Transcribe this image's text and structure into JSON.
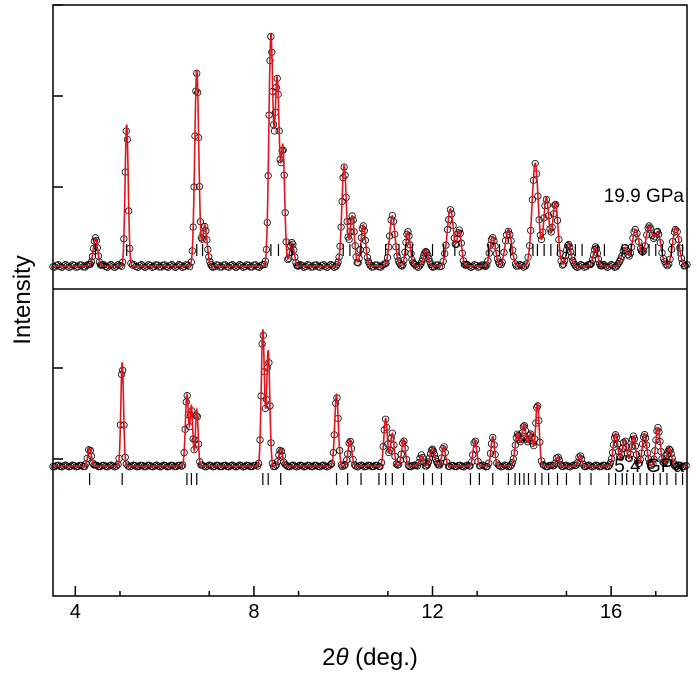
{
  "chart_data": {
    "type": "scatter",
    "x_label_prefix": "2",
    "x_label_symbol": "θ",
    "x_label_suffix": " (deg.)",
    "ylabel": "Intensity",
    "xlim": [
      3.5,
      17.7
    ],
    "x_ticks": [
      4,
      8,
      12,
      16
    ],
    "x_tick_labels": [
      "4",
      "8",
      "12",
      "16"
    ],
    "grid": false,
    "colors": {
      "observed": "#000000",
      "calculated": "#e0141e",
      "bragg": "#000000"
    },
    "panels": [
      {
        "label": "19.9 GPa",
        "peaks": [
          [
            4.45,
            0.12,
            0.05
          ],
          [
            5.15,
            0.62,
            0.035
          ],
          [
            6.72,
            0.86,
            0.045
          ],
          [
            6.9,
            0.18,
            0.05
          ],
          [
            8.38,
            1.0,
            0.045
          ],
          [
            8.52,
            0.82,
            0.05
          ],
          [
            8.65,
            0.5,
            0.04
          ],
          [
            8.85,
            0.1,
            0.05
          ],
          [
            10.02,
            0.44,
            0.05
          ],
          [
            10.2,
            0.22,
            0.05
          ],
          [
            10.45,
            0.18,
            0.05
          ],
          [
            11.1,
            0.22,
            0.06
          ],
          [
            11.45,
            0.15,
            0.05
          ],
          [
            11.85,
            0.07,
            0.05
          ],
          [
            12.4,
            0.25,
            0.07
          ],
          [
            12.6,
            0.15,
            0.05
          ],
          [
            13.35,
            0.13,
            0.06
          ],
          [
            13.7,
            0.16,
            0.07
          ],
          [
            14.3,
            0.45,
            0.07
          ],
          [
            14.55,
            0.3,
            0.06
          ],
          [
            14.75,
            0.28,
            0.06
          ],
          [
            15.05,
            0.1,
            0.05
          ],
          [
            15.65,
            0.08,
            0.05
          ],
          [
            16.3,
            0.08,
            0.06
          ],
          [
            16.55,
            0.16,
            0.08
          ],
          [
            16.85,
            0.17,
            0.08
          ],
          [
            17.05,
            0.14,
            0.07
          ],
          [
            17.45,
            0.17,
            0.07
          ]
        ],
        "bragg_positions": [
          4.45,
          5.15,
          6.72,
          6.85,
          8.38,
          8.55,
          8.85,
          10.0,
          10.15,
          10.4,
          10.95,
          11.25,
          11.4,
          11.55,
          12.0,
          12.25,
          12.5,
          13.25,
          13.5,
          13.75,
          14.25,
          14.35,
          14.5,
          14.65,
          14.8,
          15.0,
          15.2,
          15.35,
          15.7,
          15.85,
          16.25,
          16.45,
          16.7,
          16.85,
          17.0,
          17.15,
          17.35,
          17.5,
          17.6
        ]
      },
      {
        "label": "5.4 GPa",
        "peaks": [
          [
            4.32,
            0.12,
            0.04
          ],
          [
            5.05,
            0.7,
            0.03
          ],
          [
            6.5,
            0.48,
            0.035
          ],
          [
            6.6,
            0.4,
            0.03
          ],
          [
            6.72,
            0.38,
            0.03
          ],
          [
            8.2,
            0.92,
            0.035
          ],
          [
            8.32,
            0.78,
            0.035
          ],
          [
            8.6,
            0.12,
            0.04
          ],
          [
            9.85,
            0.48,
            0.04
          ],
          [
            10.15,
            0.18,
            0.04
          ],
          [
            10.95,
            0.32,
            0.04
          ],
          [
            11.1,
            0.22,
            0.04
          ],
          [
            11.35,
            0.18,
            0.04
          ],
          [
            11.75,
            0.07,
            0.04
          ],
          [
            12.0,
            0.12,
            0.05
          ],
          [
            12.25,
            0.13,
            0.04
          ],
          [
            12.95,
            0.17,
            0.04
          ],
          [
            13.35,
            0.2,
            0.04
          ],
          [
            13.9,
            0.22,
            0.05
          ],
          [
            14.05,
            0.28,
            0.05
          ],
          [
            14.2,
            0.22,
            0.05
          ],
          [
            14.35,
            0.42,
            0.04
          ],
          [
            14.8,
            0.06,
            0.04
          ],
          [
            15.3,
            0.07,
            0.04
          ],
          [
            16.1,
            0.22,
            0.05
          ],
          [
            16.3,
            0.18,
            0.05
          ],
          [
            16.5,
            0.2,
            0.05
          ],
          [
            16.75,
            0.22,
            0.05
          ],
          [
            17.05,
            0.26,
            0.05
          ],
          [
            17.3,
            0.12,
            0.05
          ]
        ],
        "bragg_positions": [
          4.32,
          5.05,
          6.5,
          6.6,
          6.72,
          8.2,
          8.32,
          8.6,
          9.85,
          10.1,
          10.4,
          10.8,
          10.95,
          11.1,
          11.35,
          11.8,
          12.0,
          12.2,
          12.85,
          13.05,
          13.35,
          13.7,
          13.85,
          13.95,
          14.05,
          14.15,
          14.3,
          14.45,
          14.6,
          14.8,
          15.0,
          15.3,
          15.55,
          15.95,
          16.1,
          16.25,
          16.35,
          16.5,
          16.65,
          16.8,
          16.95,
          17.1,
          17.25,
          17.45,
          17.6
        ]
      }
    ]
  }
}
